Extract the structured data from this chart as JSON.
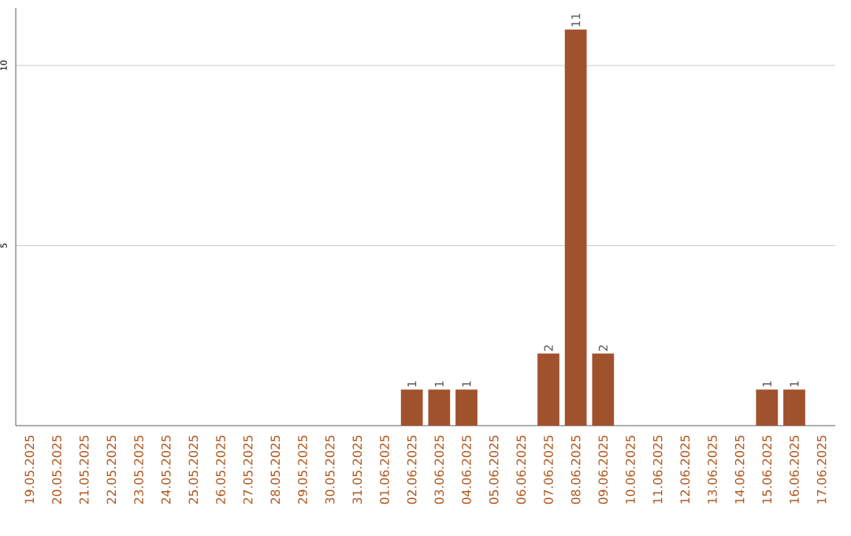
{
  "chart_data": {
    "type": "bar",
    "categories": [
      "19.05.2025",
      "20.05.2025",
      "21.05.2025",
      "22.05.2025",
      "23.05.2025",
      "24.05.2025",
      "25.05.2025",
      "26.05.2025",
      "27.05.2025",
      "28.05.2025",
      "29.05.2025",
      "30.05.2025",
      "31.05.2025",
      "01.06.2025",
      "02.06.2025",
      "03.06.2025",
      "04.06.2025",
      "05.06.2025",
      "06.06.2025",
      "07.06.2025",
      "08.06.2025",
      "09.06.2025",
      "10.06.2025",
      "11.06.2025",
      "12.06.2025",
      "13.06.2025",
      "14.06.2025",
      "15.06.2025",
      "16.06.2025",
      "17.06.2025"
    ],
    "values": [
      0,
      0,
      0,
      0,
      0,
      0,
      0,
      0,
      0,
      0,
      0,
      0,
      0,
      0,
      1,
      1,
      1,
      0,
      0,
      2,
      11,
      2,
      0,
      0,
      0,
      0,
      0,
      1,
      1,
      0
    ],
    "value_labels": [
      null,
      null,
      null,
      null,
      null,
      null,
      null,
      null,
      null,
      null,
      null,
      null,
      null,
      null,
      "1",
      "1",
      "1",
      null,
      null,
      "2",
      "11",
      "2",
      null,
      null,
      null,
      null,
      null,
      "1",
      "1",
      null
    ],
    "color": "#a0522d",
    "ylim": [
      0,
      11.6
    ],
    "yticks": [
      5,
      10
    ],
    "grid": "y"
  }
}
